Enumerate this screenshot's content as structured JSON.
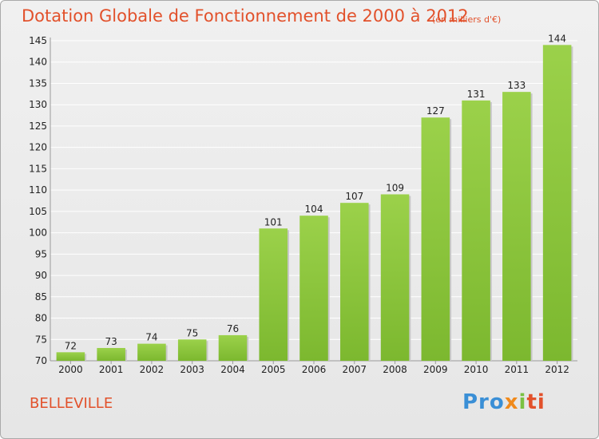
{
  "chart_data": {
    "type": "bar",
    "title": "Dotation Globale de Fonctionnement de 2000 à 2012",
    "subtitle": "(en milliers d'€)",
    "categories": [
      "2000",
      "2001",
      "2002",
      "2003",
      "2004",
      "2005",
      "2006",
      "2007",
      "2008",
      "2009",
      "2010",
      "2011",
      "2012"
    ],
    "values": [
      72,
      73,
      74,
      75,
      76,
      101,
      104,
      107,
      109,
      127,
      131,
      133,
      144
    ],
    "ylim": [
      70,
      145
    ],
    "yticks": [
      70,
      75,
      80,
      85,
      90,
      95,
      100,
      105,
      110,
      115,
      120,
      125,
      130,
      135,
      140,
      145
    ],
    "grid": true,
    "bar_color": "#7cb82f",
    "bar_color_light": "#9bd14a",
    "xlabel": "",
    "ylabel": ""
  },
  "commune": "BELLEVILLE",
  "logo": {
    "p1": "Pro",
    "p2": "x",
    "p3": "i",
    "p4": "ti"
  },
  "colors": {
    "accent": "#e2512b",
    "grid": "#ffffff"
  }
}
